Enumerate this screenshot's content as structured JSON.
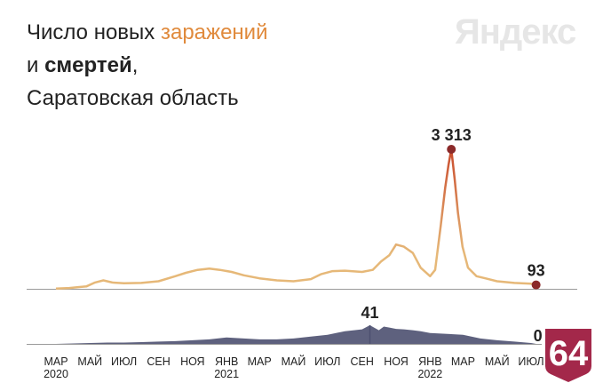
{
  "title": {
    "part1": "Число новых ",
    "accent": "заражений",
    "part2": "и ",
    "bold": "смертей",
    "part3": ",",
    "line3": "Саратовская область"
  },
  "watermark": "Яндекс",
  "badge": "64",
  "colors": {
    "infections_line": "#e6b878",
    "infections_peak": "#c94b2c",
    "deaths_fill": "#4c5070",
    "marker": "#8b2a2a",
    "axis": "#9a9a9a",
    "badge_bg": "#a3284a"
  },
  "chart_data": [
    {
      "type": "line",
      "series": [
        {
          "x": [
            "2020-03-01",
            "2020-03-25",
            "2020-04-10",
            "2020-04-25",
            "2020-05-10",
            "2020-05-25",
            "2020-06-10",
            "2020-07-01",
            "2020-08-01",
            "2020-09-01",
            "2020-10-01",
            "2020-10-20",
            "2020-11-10",
            "2020-12-01",
            "2020-12-20",
            "2021-01-10",
            "2021-02-01",
            "2021-03-01",
            "2021-04-01",
            "2021-05-01",
            "2021-06-01",
            "2021-06-20",
            "2021-07-10",
            "2021-08-01",
            "2021-09-01",
            "2021-09-20",
            "2021-10-05",
            "2021-10-20",
            "2021-11-01",
            "2021-11-15",
            "2021-12-01",
            "2021-12-15",
            "2022-01-01",
            "2022-01-10",
            "2022-01-20",
            "2022-01-28",
            "2022-02-03",
            "2022-02-08",
            "2022-02-14",
            "2022-02-20",
            "2022-02-28",
            "2022-03-10",
            "2022-03-25",
            "2022-04-10",
            "2022-05-01",
            "2022-06-01",
            "2022-07-01",
            "2022-07-10"
          ],
          "values": [
            5,
            20,
            40,
            60,
            150,
            200,
            150,
            130,
            140,
            180,
            300,
            380,
            450,
            480,
            450,
            400,
            320,
            250,
            200,
            180,
            230,
            350,
            420,
            430,
            400,
            450,
            650,
            800,
            1050,
            1000,
            850,
            500,
            300,
            450,
            1500,
            2400,
            2950,
            3313,
            2600,
            1800,
            1000,
            500,
            300,
            250,
            180,
            140,
            120,
            93
          ]
        }
      ],
      "annotations": [
        {
          "label": "3 313",
          "x": "2022-02-08",
          "y": 3313
        },
        {
          "label": "93",
          "x": "2022-07-10",
          "y": 93
        }
      ],
      "ylim": [
        0,
        3400
      ]
    },
    {
      "type": "area",
      "series": [
        {
          "x": [
            "2020-03-01",
            "2020-04-01",
            "2020-05-01",
            "2020-06-01",
            "2020-07-01",
            "2020-08-01",
            "2020-09-01",
            "2020-10-01",
            "2020-11-01",
            "2020-12-01",
            "2021-01-01",
            "2021-02-01",
            "2021-03-01",
            "2021-04-01",
            "2021-05-01",
            "2021-06-01",
            "2021-07-01",
            "2021-08-01",
            "2021-09-01",
            "2021-09-15",
            "2021-10-01",
            "2021-10-10",
            "2021-10-20",
            "2021-11-01",
            "2021-11-15",
            "2021-12-01",
            "2021-12-15",
            "2022-01-01",
            "2022-02-01",
            "2022-03-01",
            "2022-04-01",
            "2022-05-01",
            "2022-06-01",
            "2022-07-01",
            "2022-07-10"
          ],
          "values": [
            0,
            1,
            2,
            3,
            3,
            4,
            5,
            6,
            8,
            10,
            14,
            12,
            10,
            10,
            12,
            16,
            20,
            28,
            32,
            41,
            30,
            38,
            36,
            33,
            32,
            30,
            28,
            24,
            22,
            20,
            12,
            8,
            5,
            2,
            0
          ]
        }
      ],
      "annotations": [
        {
          "label": "41",
          "x": "2021-09-15",
          "y": 41
        },
        {
          "label": "0",
          "x": "2022-07-10",
          "y": 0
        }
      ],
      "ylim": [
        0,
        45
      ]
    }
  ],
  "x_axis": {
    "ticks": [
      {
        "label": "МАР",
        "x": "2020-03-01",
        "year": "2020"
      },
      {
        "label": "МАЙ",
        "x": "2020-05-01"
      },
      {
        "label": "ИЮЛ",
        "x": "2020-07-01"
      },
      {
        "label": "СЕН",
        "x": "2020-09-01"
      },
      {
        "label": "НОЯ",
        "x": "2020-11-01"
      },
      {
        "label": "ЯНВ",
        "x": "2021-01-01",
        "year": "2021"
      },
      {
        "label": "МАР",
        "x": "2021-03-01"
      },
      {
        "label": "МАЙ",
        "x": "2021-05-01"
      },
      {
        "label": "ИЮЛ",
        "x": "2021-07-01"
      },
      {
        "label": "СЕН",
        "x": "2021-09-01"
      },
      {
        "label": "НОЯ",
        "x": "2021-11-01"
      },
      {
        "label": "ЯНВ",
        "x": "2022-01-01",
        "year": "2022"
      },
      {
        "label": "МАР",
        "x": "2022-03-01"
      },
      {
        "label": "МАЙ",
        "x": "2022-05-01"
      },
      {
        "label": "ИЮЛ",
        "x": "2022-07-01"
      }
    ]
  }
}
